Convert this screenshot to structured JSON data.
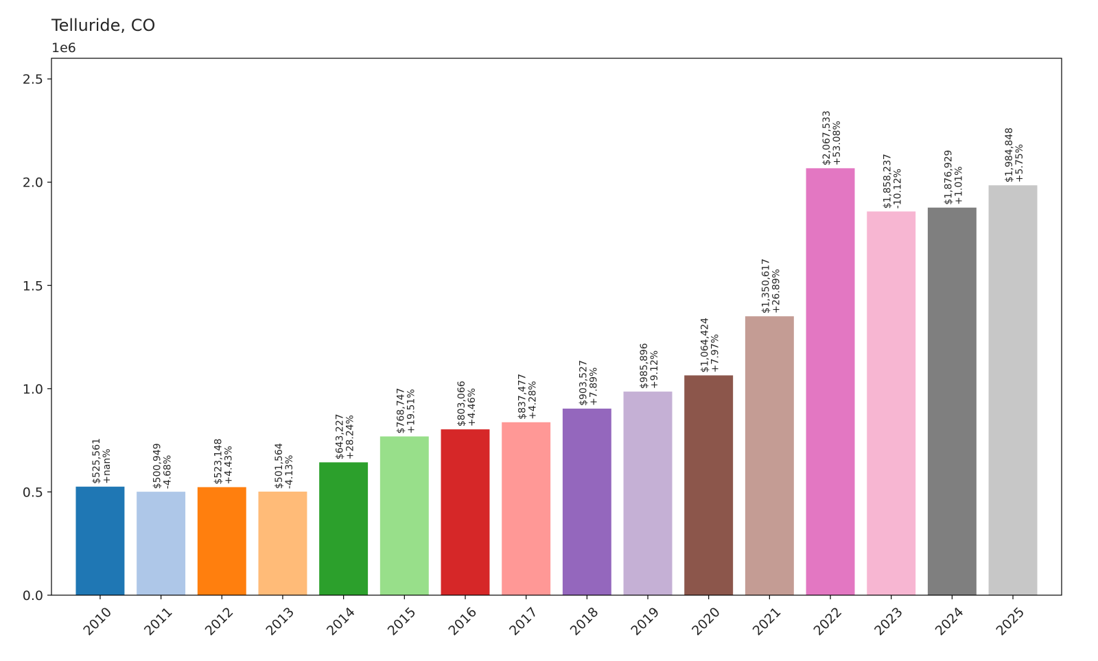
{
  "chart_data": {
    "type": "bar",
    "title": "Telluride, CO",
    "xlabel": "",
    "ylabel": "",
    "y_offset_label": "1e6",
    "ylim": [
      0,
      2600000
    ],
    "yticks": [
      0,
      500000,
      1000000,
      1500000,
      2000000,
      2500000
    ],
    "ytick_labels": [
      "0.0",
      "0.5",
      "1.0",
      "1.5",
      "2.0",
      "2.5"
    ],
    "grid": false,
    "categories": [
      "2010",
      "2011",
      "2012",
      "2013",
      "2014",
      "2015",
      "2016",
      "2017",
      "2018",
      "2019",
      "2020",
      "2021",
      "2022",
      "2023",
      "2024",
      "2025"
    ],
    "values": [
      525561,
      500949,
      523148,
      501564,
      643227,
      768747,
      803066,
      837477,
      903527,
      985896,
      1064424,
      1350617,
      2067533,
      1858237,
      1876929,
      1984848
    ],
    "value_labels": [
      "$525,561",
      "$500,949",
      "$523,148",
      "$501,564",
      "$643,227",
      "$768,747",
      "$803,066",
      "$837,477",
      "$903,527",
      "$985,896",
      "$1,064,424",
      "$1,350,617",
      "$2,067,533",
      "$1,858,237",
      "$1,876,929",
      "$1,984,848"
    ],
    "change_labels": [
      "+nan%",
      "-4.68%",
      "+4.43%",
      "-4.13%",
      "+28.24%",
      "+19.51%",
      "+4.46%",
      "+4.28%",
      "+7.89%",
      "+9.12%",
      "+7.97%",
      "+26.89%",
      "+53.08%",
      "-10.12%",
      "+1.01%",
      "+5.75%"
    ],
    "colors": [
      "#1f77b4",
      "#aec7e8",
      "#ff7f0e",
      "#ffbb78",
      "#2ca02c",
      "#98df8a",
      "#d62728",
      "#ff9896",
      "#9467bd",
      "#c5b0d5",
      "#8c564b",
      "#c49c94",
      "#e377c2",
      "#f7b6d2",
      "#7f7f7f",
      "#c7c7c7"
    ]
  }
}
